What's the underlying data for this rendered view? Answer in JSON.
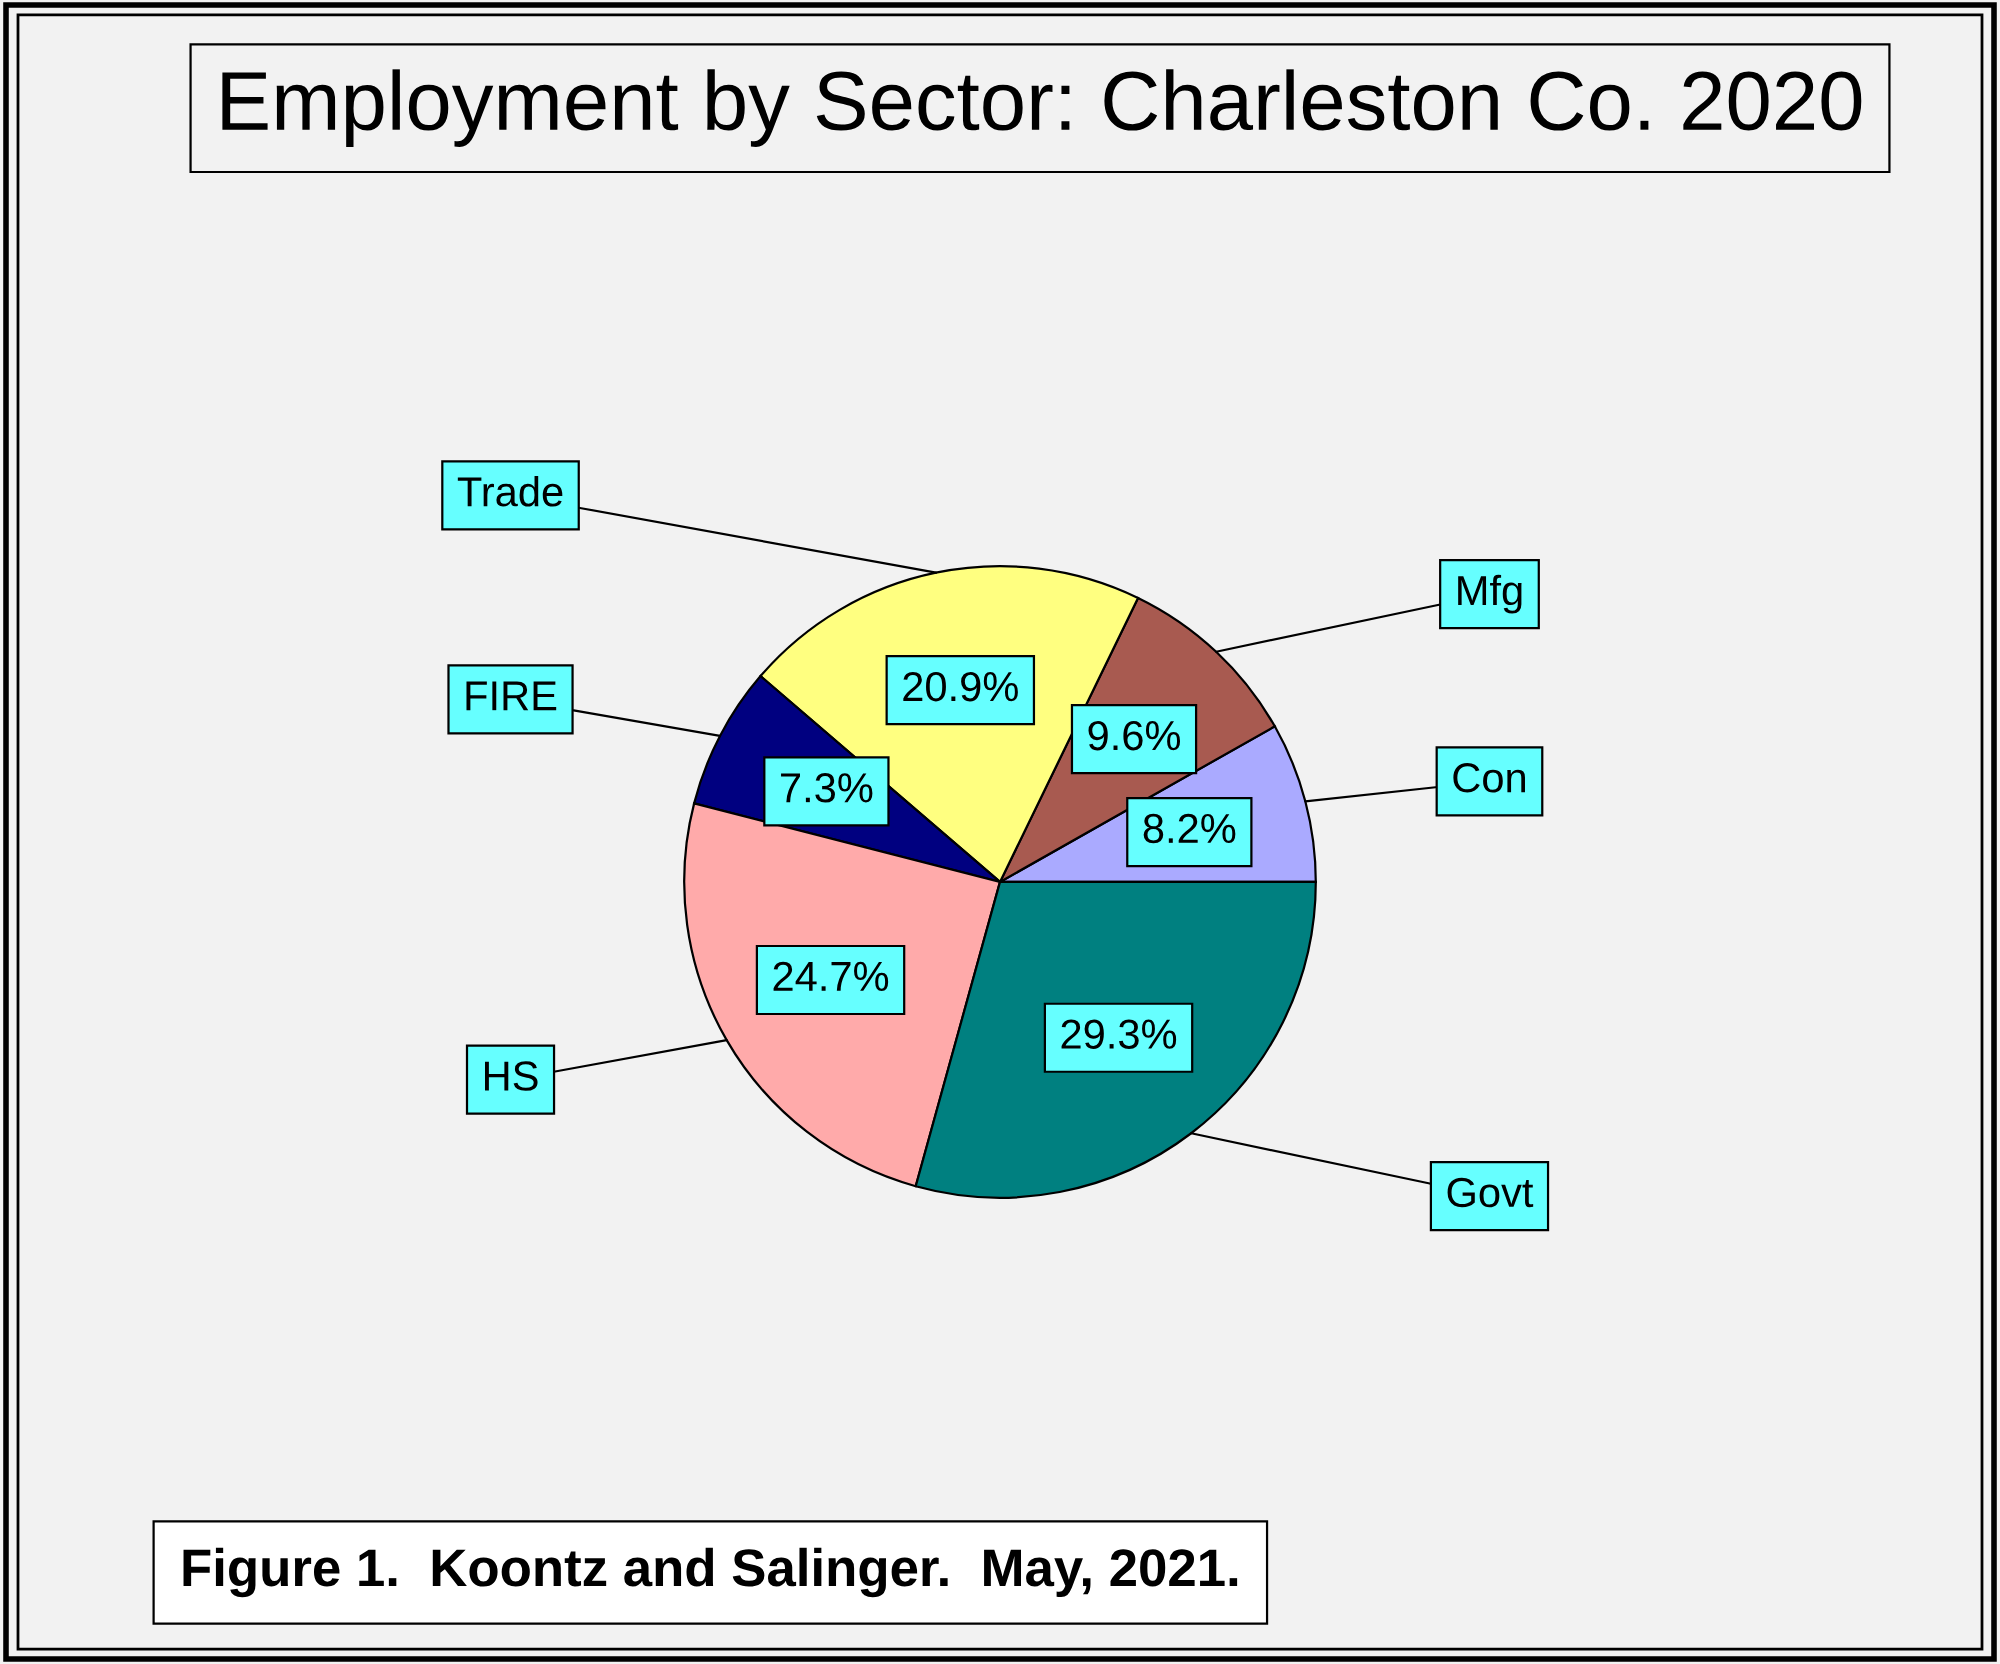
{
  "chart_data": {
    "type": "pie",
    "title": "Employment by Sector: Charleston Co. 2020",
    "categories": [
      "Con",
      "Mfg",
      "Trade",
      "FIRE",
      "HS",
      "Govt"
    ],
    "values": [
      8.2,
      9.6,
      20.9,
      7.3,
      24.7,
      29.3
    ],
    "value_labels": [
      "8.2%",
      "9.6%",
      "20.9%",
      "7.3%",
      "24.7%",
      "29.3%"
    ],
    "colors": [
      "#aaaaff",
      "#a85a50",
      "#ffff80",
      "#000080",
      "#ffaaaa",
      "#008080"
    ],
    "annotations": [
      "Figure 1.  Koontz and Salinger.  May, 2021."
    ],
    "legend": false
  }
}
